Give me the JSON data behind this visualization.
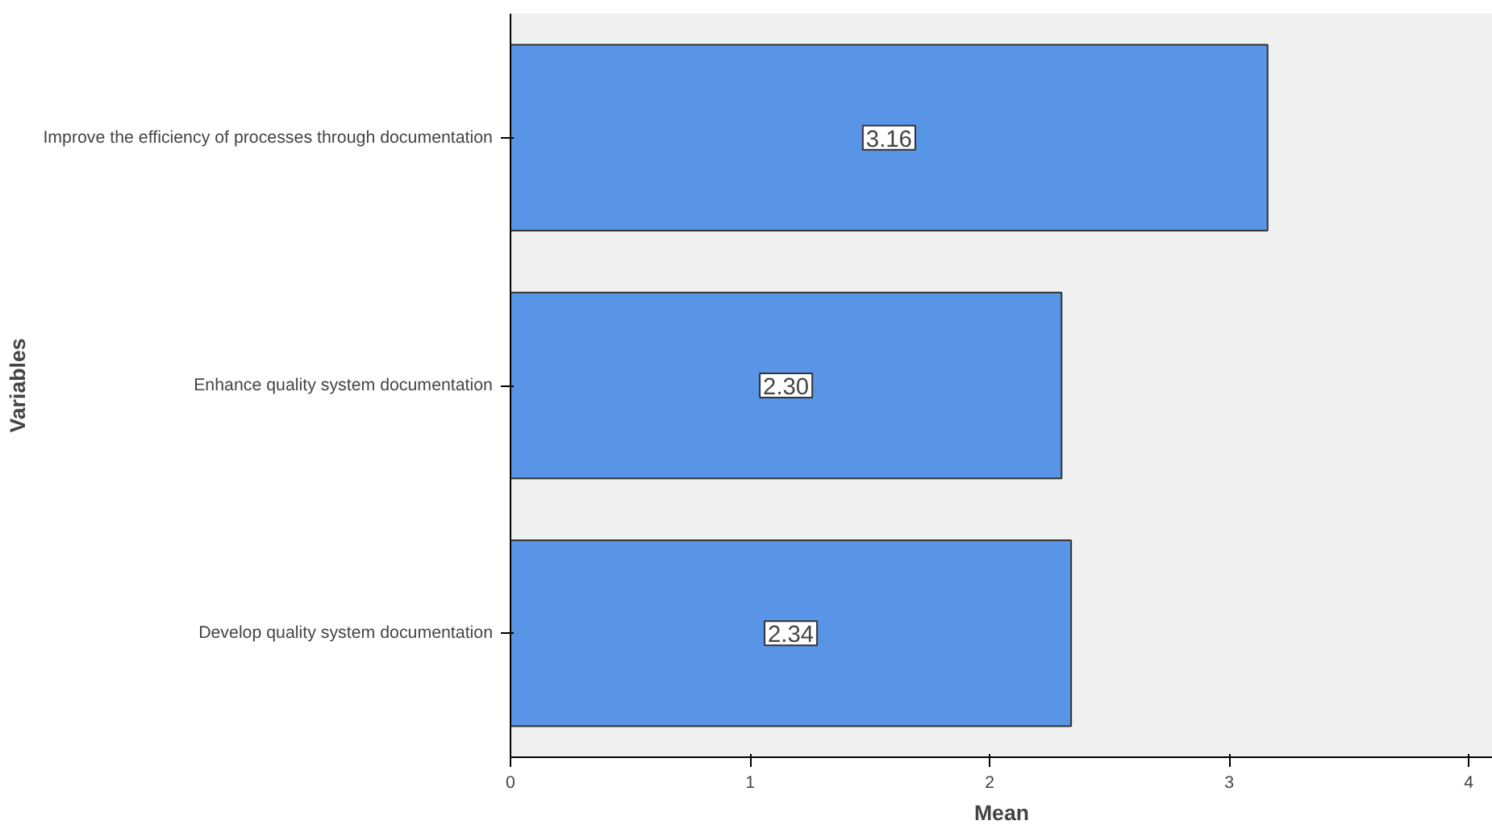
{
  "chart_data": {
    "type": "bar",
    "orientation": "horizontal",
    "xlabel": "Mean",
    "ylabel": "Variables",
    "categories": [
      "Improve the efficiency of processes through documentation",
      "Enhance quality system documentation",
      "Develop quality system documentation"
    ],
    "values": [
      3.16,
      2.3,
      2.34
    ],
    "value_labels": [
      "3.16",
      "2.30",
      "2.34"
    ],
    "color": "#5895e6",
    "xlim": [
      0,
      4.1
    ],
    "xticks": [
      0,
      1,
      2,
      3,
      4
    ],
    "grid": false
  }
}
